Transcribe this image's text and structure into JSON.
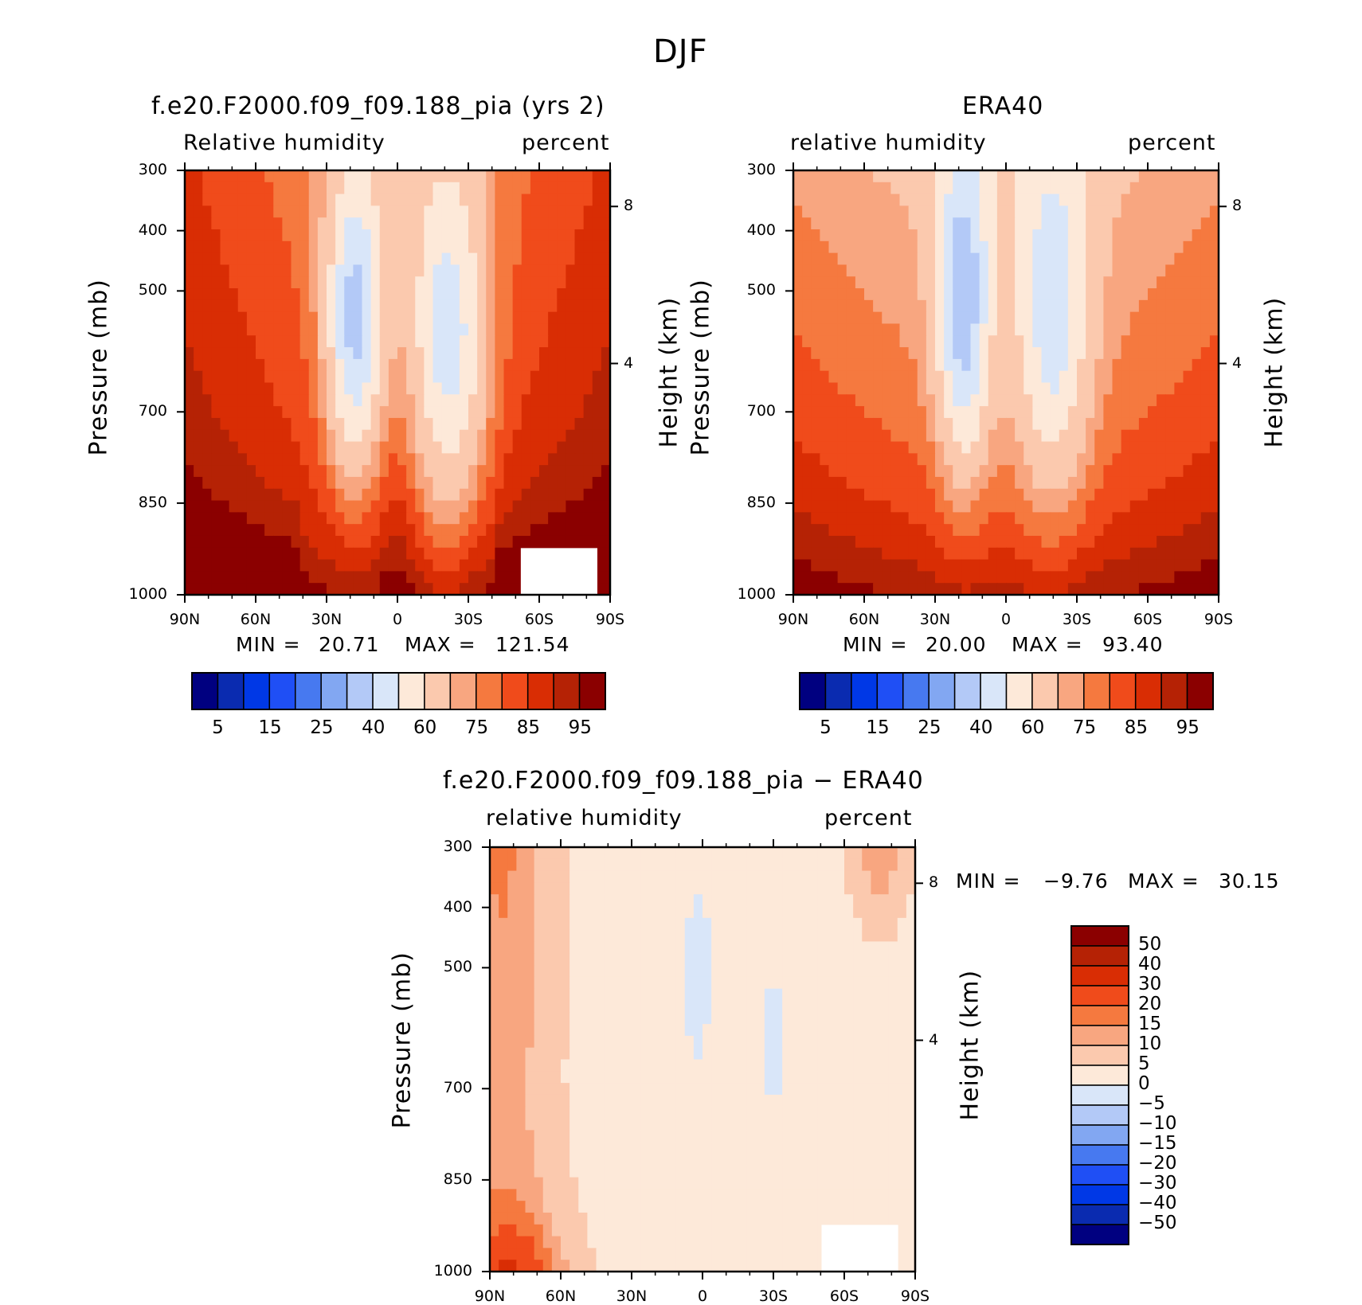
{
  "figure_title": "DJF",
  "colors": {
    "rh_scale": [
      "#000080",
      "#0a2bb0",
      "#0038e6",
      "#1f4ff5",
      "#4779f0",
      "#82a7f2",
      "#b3c9f7",
      "#d9e6f9",
      "#fde9d9",
      "#fbc9ae",
      "#f8a680",
      "#f5793f",
      "#f04b1b",
      "#d92d04",
      "#b52205",
      "#8b0000"
    ],
    "diff_scale": [
      "#000080",
      "#0a2bb0",
      "#0038e6",
      "#1f4ff5",
      "#4779f0",
      "#82a7f2",
      "#b3c9f7",
      "#d9e6f9",
      "#fde9d9",
      "#fbc9ae",
      "#f8a680",
      "#f5793f",
      "#f04b1b",
      "#d92d04",
      "#b52205",
      "#8b0000"
    ]
  },
  "chart_data": [
    {
      "type": "heatmap",
      "title": "f.e20.F2000.f09_f09.188_pia (yrs 2)",
      "left_label": "Relative humidity",
      "right_label": "percent",
      "ylabel": "Pressure (mb)",
      "ylabel_right": "Height (km)",
      "x_ticks": [
        "90N",
        "60N",
        "30N",
        "0",
        "30S",
        "60S",
        "90S"
      ],
      "y_ticks": [
        "300",
        "400",
        "500",
        "700",
        "850",
        "1000"
      ],
      "y_ticks_right": [
        "8",
        "4"
      ],
      "min_label": "MIN =",
      "min_value": "20.71",
      "max_label": "MAX =",
      "max_value": "121.54",
      "colorbar_labels": [
        "5",
        "15",
        "25",
        "40",
        "60",
        "75",
        "85",
        "95"
      ],
      "grid": false
    },
    {
      "type": "heatmap",
      "title": "ERA40",
      "left_label": "relative humidity",
      "right_label": "percent",
      "ylabel": "Pressure (mb)",
      "ylabel_right": "Height (km)",
      "x_ticks": [
        "90N",
        "60N",
        "30N",
        "0",
        "30S",
        "60S",
        "90S"
      ],
      "y_ticks": [
        "300",
        "400",
        "500",
        "700",
        "850",
        "1000"
      ],
      "y_ticks_right": [
        "8",
        "4"
      ],
      "min_label": "MIN =",
      "min_value": "20.00",
      "max_label": "MAX =",
      "max_value": "93.40",
      "colorbar_labels": [
        "5",
        "15",
        "25",
        "40",
        "60",
        "75",
        "85",
        "95"
      ],
      "grid": false
    },
    {
      "type": "heatmap",
      "title": "f.e20.F2000.f09_f09.188_pia − ERA40",
      "left_label": "relative humidity",
      "right_label": "percent",
      "ylabel": "Pressure (mb)",
      "ylabel_right": "Height (km)",
      "x_ticks": [
        "90N",
        "60N",
        "30N",
        "0",
        "30S",
        "60S",
        "90S"
      ],
      "y_ticks": [
        "300",
        "400",
        "500",
        "700",
        "850",
        "1000"
      ],
      "y_ticks_right": [
        "8",
        "4"
      ],
      "min_label": "MIN =",
      "min_value": "−9.76",
      "max_label": "MAX =",
      "max_value": "30.15",
      "colorbar_labels": [
        "50",
        "40",
        "30",
        "20",
        "15",
        "10",
        "5",
        "0",
        "−5",
        "−10",
        "−15",
        "−20",
        "−30",
        "−40",
        "−50"
      ],
      "grid": false
    }
  ]
}
